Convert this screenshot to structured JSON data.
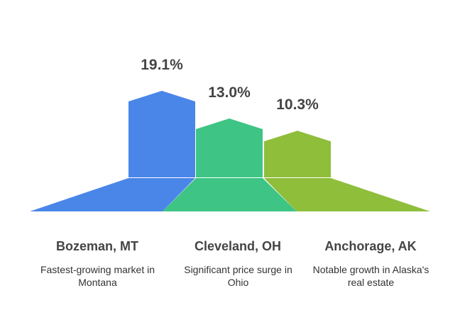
{
  "chart_data": {
    "type": "bar",
    "categories": [
      "Bozeman, MT",
      "Cleveland, OH",
      "Anchorage, AK"
    ],
    "descriptions": [
      "Fastest-growing market in Montana",
      "Significant price surge in Ohio",
      "Notable growth in Alaska's real estate"
    ],
    "values": [
      19.1,
      13.0,
      10.3
    ],
    "value_labels": [
      "19.1%",
      "13.0%",
      "10.3%"
    ],
    "colors": [
      "#4a86e8",
      "#3ec484",
      "#8fbe3b"
    ]
  }
}
